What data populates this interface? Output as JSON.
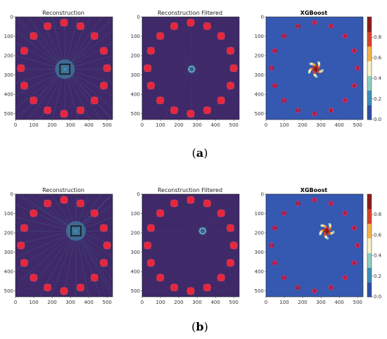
{
  "figure": {
    "rows": [
      {
        "caption_letter": "a",
        "panels": [
          {
            "title": "Reconstruction",
            "kind": "recon",
            "center": [
              270,
              270
            ],
            "box": true
          },
          {
            "title": "Reconstruction Filtered",
            "kind": "filtered",
            "center": [
              270,
              270
            ],
            "box": false
          },
          {
            "title": "XGBoost",
            "kind": "xgb",
            "center": [
              270,
              270
            ]
          }
        ]
      },
      {
        "caption_letter": "b",
        "panels": [
          {
            "title": "Reconstruction",
            "kind": "recon",
            "center": [
              330,
              190
            ],
            "box": true
          },
          {
            "title": "Reconstruction Filtered",
            "kind": "filtered",
            "center": [
              330,
              190
            ],
            "box": false
          },
          {
            "title": "XGBoost",
            "kind": "xgb",
            "center": [
              330,
              190
            ]
          }
        ]
      }
    ],
    "axes": {
      "x_ticks": [
        0,
        100,
        200,
        300,
        400,
        500
      ],
      "y_ticks": [
        0,
        100,
        200,
        300,
        400,
        500
      ],
      "range": [
        0,
        530
      ]
    },
    "colorbar": {
      "ticks": [
        0.0,
        0.2,
        0.4,
        0.6,
        0.8
      ],
      "range": [
        0,
        1
      ],
      "colors": [
        "#2f4fa8",
        "#3d8fb8",
        "#8ccfc0",
        "#f6f2c8",
        "#f4b34a",
        "#d8432a",
        "#8e1b1b"
      ]
    },
    "markers": {
      "labels": [
        "1",
        "2",
        "3",
        "4",
        "5",
        "6",
        "7",
        "8",
        "9",
        "10",
        "11",
        "12",
        "13",
        "14",
        "15",
        "16"
      ],
      "color": "#d9245a",
      "radius": 235
    },
    "colors": {
      "recon_bg": "#3f2968",
      "hotspot": "#e8263a",
      "xgb_bg": "#3559b0"
    }
  }
}
